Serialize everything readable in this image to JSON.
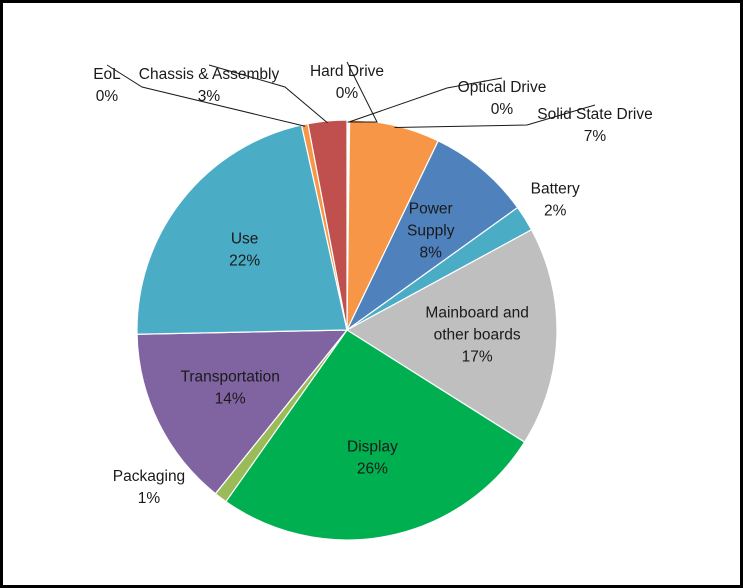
{
  "chart_data": {
    "type": "pie",
    "title": "",
    "slices": [
      {
        "label": "Hard Drive",
        "pct_label": "0%",
        "value": 0.1,
        "color": "#c0504d"
      },
      {
        "label": "Optical Drive",
        "pct_label": "0%",
        "value": 0.1,
        "color": "#c0504d"
      },
      {
        "label": "Solid State Drive",
        "pct_label": "7%",
        "value": 7,
        "color": "#f79646"
      },
      {
        "label": "Power Supply",
        "pct_label": "8%",
        "value": 8,
        "color": "#4f81bd"
      },
      {
        "label": "Battery",
        "pct_label": "2%",
        "value": 2,
        "color": "#4bacc6"
      },
      {
        "label": "Mainboard and other boards",
        "pct_label": "17%",
        "value": 17,
        "color": "#bfbfbf"
      },
      {
        "label": "Display",
        "pct_label": "26%",
        "value": 26,
        "color": "#00b050"
      },
      {
        "label": "Packaging",
        "pct_label": "1%",
        "value": 1,
        "color": "#9bbb59"
      },
      {
        "label": "Transportation",
        "pct_label": "14%",
        "value": 14,
        "color": "#8064a2"
      },
      {
        "label": "Use",
        "pct_label": "22%",
        "value": 22,
        "color": "#4bacc6"
      },
      {
        "label": "EoL",
        "pct_label": "0%",
        "value": 0.5,
        "color": "#f79646"
      },
      {
        "label": "Chassis & Assembly",
        "pct_label": "3%",
        "value": 3,
        "color": "#c0504d"
      }
    ]
  }
}
